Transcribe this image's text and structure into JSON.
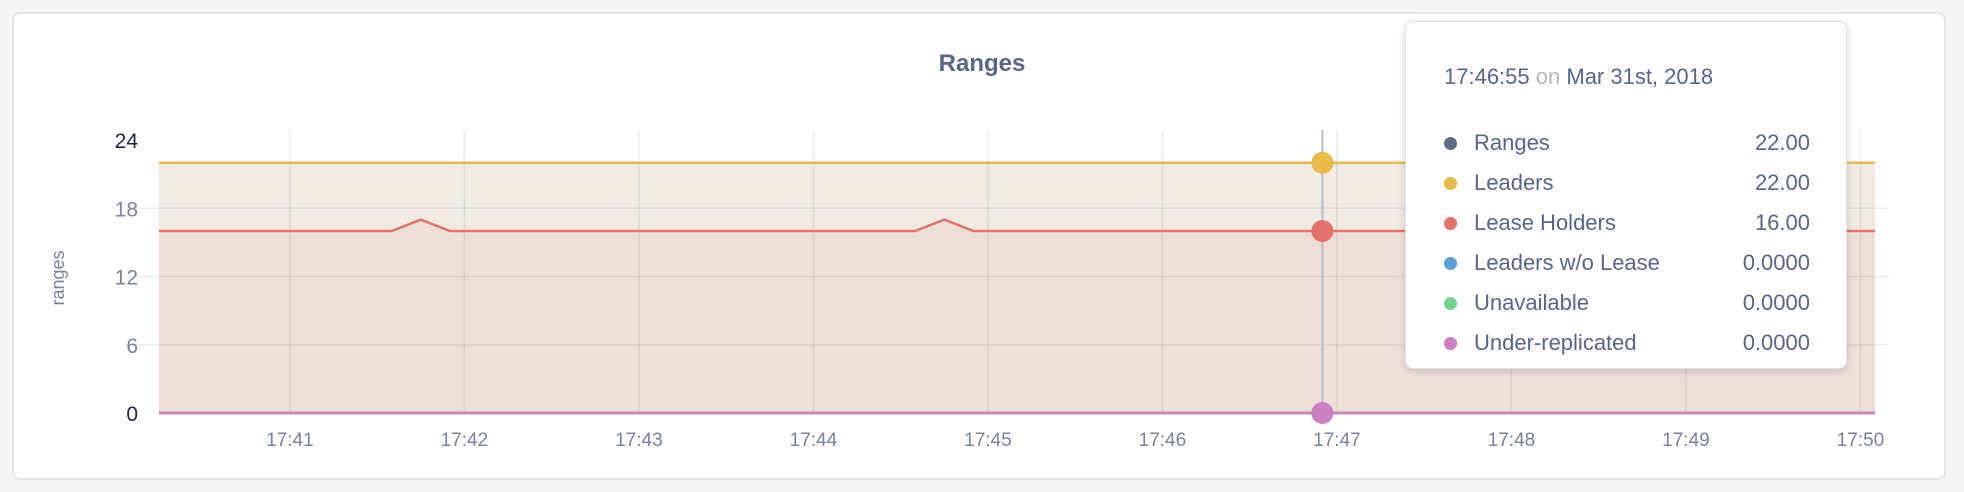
{
  "chart_data": {
    "type": "area",
    "title": "Ranges",
    "ylabel": "ranges",
    "xlabel": "",
    "ylim": [
      0,
      24
    ],
    "yticks": [
      "0",
      "6",
      "12",
      "18",
      "24"
    ],
    "xlim": [
      "17:40:15",
      "17:50:05"
    ],
    "xticks": [
      "17:41",
      "17:42",
      "17:43",
      "17:44",
      "17:45",
      "17:46",
      "17:47",
      "17:48",
      "17:49",
      "17:50"
    ],
    "grid": true,
    "series": [
      {
        "name": "Ranges",
        "color": "#5f6a87",
        "points": [
          [
            "17:40:15",
            22
          ],
          [
            "17:50:05",
            22
          ]
        ]
      },
      {
        "name": "Leaders",
        "color": "#e9b94a",
        "fill": "#efebe3",
        "points": [
          [
            "17:40:15",
            22
          ],
          [
            "17:50:05",
            22
          ]
        ]
      },
      {
        "name": "Lease Holders",
        "color": "#e4716b",
        "fill": "#ecdfd8",
        "points": [
          [
            "17:40:15",
            16
          ],
          [
            "17:41:35",
            16
          ],
          [
            "17:41:45",
            17
          ],
          [
            "17:41:55",
            16
          ],
          [
            "17:44:35",
            16
          ],
          [
            "17:44:45",
            17
          ],
          [
            "17:44:55",
            16
          ],
          [
            "17:50:05",
            16
          ]
        ]
      },
      {
        "name": "Leaders w/o Lease",
        "color": "#5b9fd6",
        "points": [
          [
            "17:40:15",
            0
          ],
          [
            "17:50:05",
            0
          ]
        ]
      },
      {
        "name": "Unavailable",
        "color": "#72d391",
        "points": [
          [
            "17:40:15",
            0
          ],
          [
            "17:50:05",
            0
          ]
        ]
      },
      {
        "name": "Under-replicated",
        "color": "#cb80c2",
        "points": [
          [
            "17:40:15",
            0
          ],
          [
            "17:50:05",
            0
          ]
        ]
      }
    ],
    "hover": {
      "time": "17:46:55",
      "on": "on",
      "date": "Mar 31st, 2018",
      "values": [
        "22.00",
        "22.00",
        "16.00",
        "0.0000",
        "0.0000",
        "0.0000"
      ]
    }
  }
}
